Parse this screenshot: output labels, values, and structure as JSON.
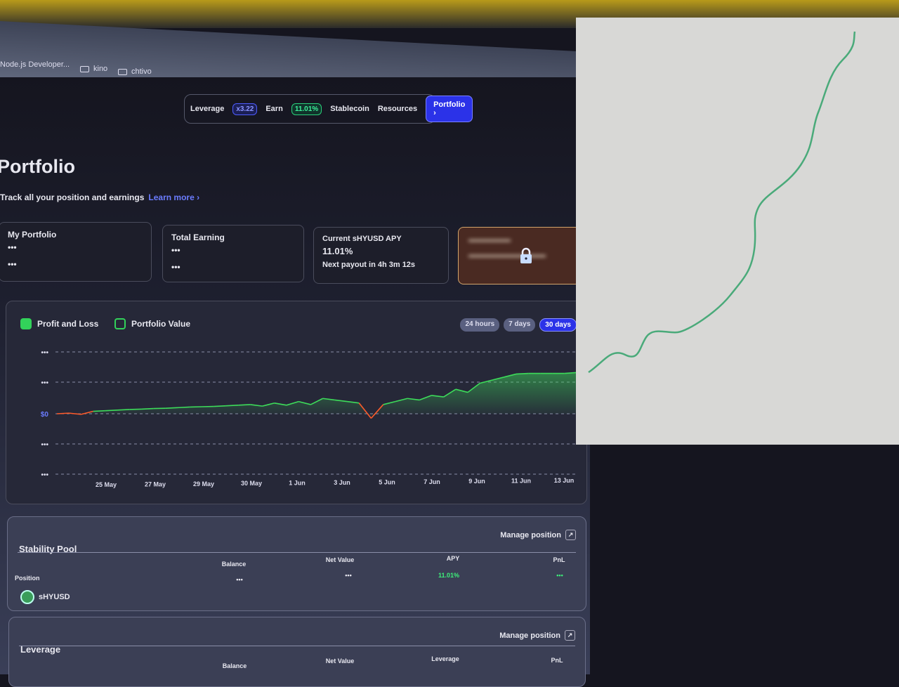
{
  "browser": {
    "bookmarks": [
      {
        "label": "Node.js Developer..."
      },
      {
        "label": "kino"
      },
      {
        "label": "chtivo"
      }
    ]
  },
  "nav": {
    "leverage_label": "Leverage",
    "leverage_value": "x3.22",
    "earn_label": "Earn",
    "earn_value": "11.01%",
    "stablecoin": "Stablecoin",
    "resources": "Resources",
    "portfolio": "Portfolio"
  },
  "page": {
    "title": "Portfolio",
    "subtitle": "Track all your position and earnings",
    "learn_more": "Learn more"
  },
  "cards": [
    {
      "label": "My Portfolio",
      "value": "•••",
      "sub": "•••"
    },
    {
      "label": "Total Earning",
      "value": "•••",
      "sub": "•••"
    },
    {
      "label": "Current sHYUSD APY",
      "value": "11.01%",
      "sub": "Next payout in 4h 3m 12s"
    }
  ],
  "locked_card": {
    "icon": "lock-icon"
  },
  "chart": {
    "legend": [
      {
        "label": "Profit and Loss",
        "checked": true
      },
      {
        "label": "Portfolio Value",
        "checked": false
      }
    ],
    "ranges": [
      {
        "label": "24 hours",
        "active": false
      },
      {
        "label": "7 days",
        "active": false
      },
      {
        "label": "30 days",
        "active": true
      }
    ]
  },
  "chart_data": {
    "type": "area",
    "y_tick_labels": [
      "•••",
      "•••",
      "$0",
      "•••",
      "•••"
    ],
    "x_tick_labels": [
      "25 May",
      "27 May",
      "29 May",
      "30 May",
      "1 Jun",
      "3 Jun",
      "5 Jun",
      "7 Jun",
      "9 Jun",
      "11 Jun",
      "13 Jun"
    ],
    "grid": true,
    "colors": {
      "positive": "#3ddc5a",
      "negative": "#ff5a2a"
    },
    "series": [
      {
        "values": [
          0,
          0.02,
          -0.02,
          0.08,
          0.1,
          0.12,
          0.14,
          0.15,
          0.17,
          0.18,
          0.2,
          0.22,
          0.23,
          0.24,
          0.26,
          0.28,
          0.3,
          0.25,
          0.35,
          0.28,
          0.4,
          0.3,
          0.5,
          0.45,
          0.4,
          0.35,
          -0.15,
          0.3,
          0.4,
          0.5,
          0.45,
          0.6,
          0.55,
          0.8,
          0.7,
          1.0,
          1.1,
          1.2,
          1.3,
          1.32,
          1.32,
          1.32,
          1.32,
          1.35
        ]
      }
    ]
  },
  "stability_pool": {
    "title": "Stability Pool",
    "manage": "Manage position",
    "columns": [
      "Position",
      "Balance",
      "Net Value",
      "APY",
      "PnL"
    ],
    "asset": "sHYUSD",
    "balance": "•••",
    "net_value": "•••",
    "apy": "11.01%",
    "pnl": "•••"
  },
  "leverage_section": {
    "title": "Leverage",
    "manage": "Manage position",
    "columns": [
      "Balance",
      "Net Value",
      "Leverage",
      "PnL"
    ]
  }
}
